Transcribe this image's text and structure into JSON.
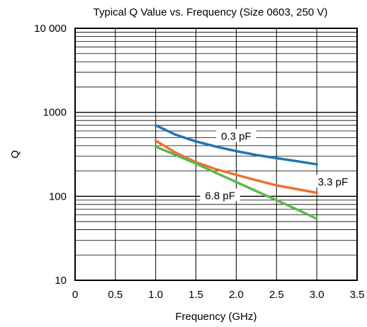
{
  "chart_data": {
    "type": "line",
    "title": "Typical Q Value vs. Frequency (Size 0603, 250 V)",
    "xlabel": "Frequency (GHz)",
    "ylabel": "Q",
    "xlim": [
      0,
      3.5
    ],
    "ylim": [
      10,
      10000
    ],
    "yscale": "log",
    "grid": true,
    "x_ticks": [
      {
        "value": 0,
        "label": "0"
      },
      {
        "value": 0.5,
        "label": "0.5"
      },
      {
        "value": 1.0,
        "label": "1.0"
      },
      {
        "value": 1.5,
        "label": "1.5"
      },
      {
        "value": 2.0,
        "label": "2.0"
      },
      {
        "value": 2.5,
        "label": "2.5"
      },
      {
        "value": 3.0,
        "label": "3.0"
      },
      {
        "value": 3.5,
        "label": "3.5"
      }
    ],
    "y_ticks": [
      {
        "value": 10,
        "label": "10"
      },
      {
        "value": 100,
        "label": "100"
      },
      {
        "value": 1000,
        "label": "1000"
      },
      {
        "value": 10000,
        "label": "10 000"
      }
    ],
    "series": [
      {
        "name": "0.3 pF",
        "color": "#1f77b4",
        "x": [
          1.0,
          1.25,
          1.5,
          1.75,
          2.0,
          2.25,
          2.5,
          2.75,
          3.0
        ],
        "y": [
          700,
          540,
          450,
          390,
          345,
          310,
          285,
          262,
          240
        ]
      },
      {
        "name": "3.3 pF",
        "color": "#f07030",
        "x": [
          1.0,
          1.25,
          1.5,
          1.75,
          2.0,
          2.25,
          2.5,
          2.75,
          3.0
        ],
        "y": [
          460,
          330,
          255,
          210,
          180,
          155,
          135,
          122,
          110
        ]
      },
      {
        "name": "6.8 pF",
        "color": "#5cb84c",
        "x": [
          1.0,
          1.25,
          1.5,
          1.75,
          2.0,
          2.25,
          2.5,
          2.75,
          3.0
        ],
        "y": [
          390,
          310,
          245,
          190,
          148,
          115,
          90,
          70,
          54
        ]
      }
    ],
    "annotations": [
      {
        "text": "0.3 pF",
        "series": "0.3 pF"
      },
      {
        "text": "3.3 pF",
        "series": "3.3 pF"
      },
      {
        "text": "6.8 pF",
        "series": "6.8 pF"
      }
    ]
  }
}
